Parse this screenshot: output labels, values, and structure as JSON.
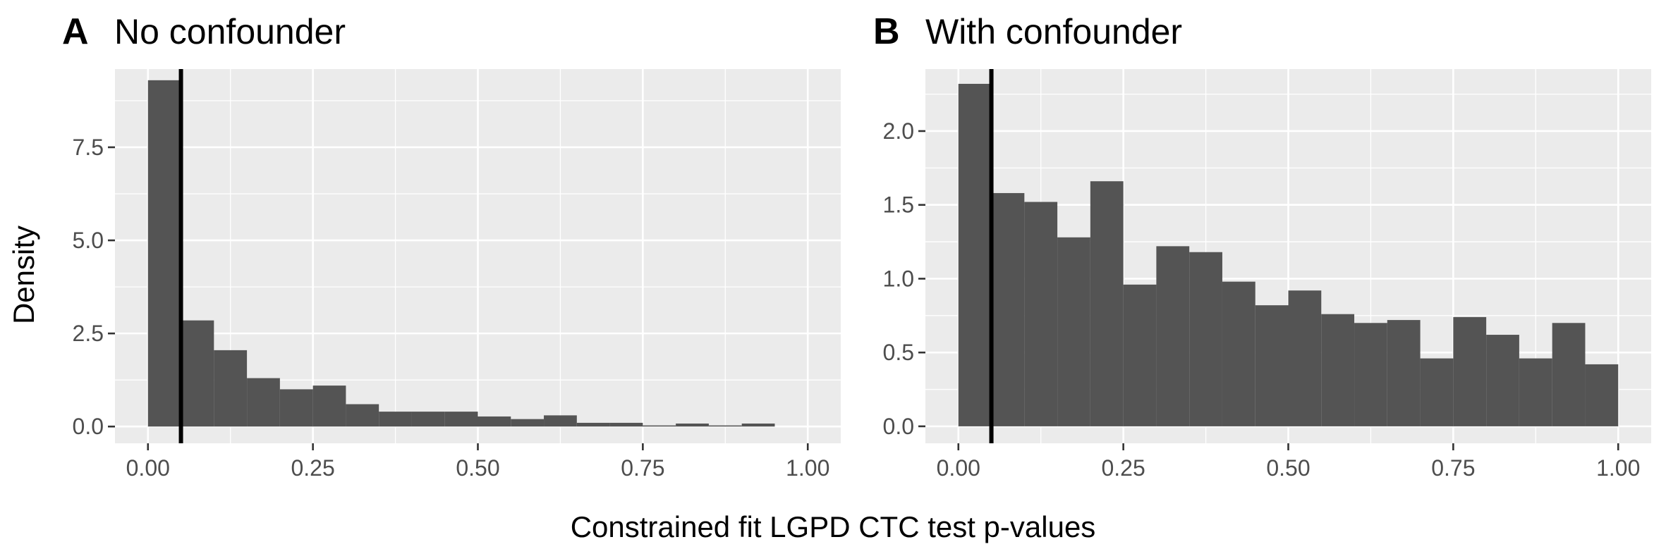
{
  "figure": {
    "xlabel": "Constrained fit LGPD CTC test p-values",
    "ylabel": "Density"
  },
  "chart_data": [
    {
      "type": "bar",
      "tag": "A",
      "title": "No confounder",
      "xlabel": "Constrained fit LGPD CTC test p-values",
      "ylabel": "Density",
      "xlim": [
        -0.05,
        1.05
      ],
      "ylim": [
        -0.45,
        9.6
      ],
      "xticks": [
        0,
        0.25,
        0.5,
        0.75,
        1
      ],
      "xtick_labels": [
        "0.00",
        "0.25",
        "0.50",
        "0.75",
        "1.00"
      ],
      "yticks": [
        0,
        2.5,
        5,
        7.5
      ],
      "ytick_labels": [
        "0.0",
        "2.5",
        "5.0",
        "7.5"
      ],
      "bin_width": 0.05,
      "bins_start": [
        0,
        0.05,
        0.1,
        0.15,
        0.2,
        0.25,
        0.3,
        0.35,
        0.4,
        0.45,
        0.5,
        0.55,
        0.6,
        0.65,
        0.7,
        0.75,
        0.8,
        0.85,
        0.9
      ],
      "values": [
        9.3,
        2.85,
        2.05,
        1.3,
        1.0,
        1.1,
        0.6,
        0.4,
        0.4,
        0.4,
        0.27,
        0.2,
        0.3,
        0.1,
        0.1,
        0.03,
        0.08,
        0.03,
        0.08
      ],
      "vline": 0.05,
      "grid": true
    },
    {
      "type": "bar",
      "tag": "B",
      "title": "With confounder",
      "xlabel": "Constrained fit LGPD CTC test p-values",
      "ylabel": "Density",
      "xlim": [
        -0.05,
        1.05
      ],
      "ylim": [
        -0.115,
        2.42
      ],
      "xticks": [
        0,
        0.25,
        0.5,
        0.75,
        1
      ],
      "xtick_labels": [
        "0.00",
        "0.25",
        "0.50",
        "0.75",
        "1.00"
      ],
      "yticks": [
        0,
        0.5,
        1,
        1.5,
        2
      ],
      "ytick_labels": [
        "0.0",
        "0.5",
        "1.0",
        "1.5",
        "2.0"
      ],
      "bin_width": 0.05,
      "bins_start": [
        0,
        0.05,
        0.1,
        0.15,
        0.2,
        0.25,
        0.3,
        0.35,
        0.4,
        0.45,
        0.5,
        0.55,
        0.6,
        0.65,
        0.7,
        0.75,
        0.8,
        0.85,
        0.9,
        0.95
      ],
      "values": [
        2.32,
        1.58,
        1.52,
        1.28,
        1.66,
        0.96,
        1.22,
        1.18,
        0.98,
        0.82,
        0.92,
        0.76,
        0.7,
        0.72,
        0.46,
        0.74,
        0.62,
        0.46,
        0.7,
        0.42
      ],
      "vline": 0.05,
      "grid": true
    }
  ]
}
